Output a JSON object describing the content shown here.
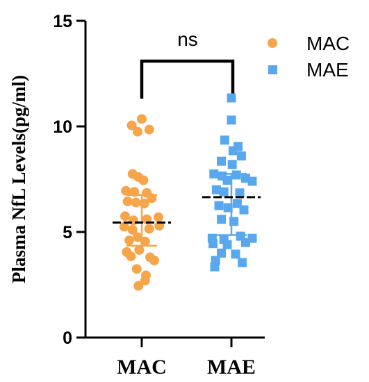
{
  "chart_data": {
    "type": "scatter",
    "ylabel": "Plasma NfL Levels(pg/ml)",
    "ylim": [
      0,
      15
    ],
    "yticks": [
      0,
      5,
      10,
      15
    ],
    "categories": [
      "MAC",
      "MAE"
    ],
    "legend_position": "top-right",
    "grid": false,
    "significance": {
      "label": "ns",
      "between": [
        "MAC",
        "MAE"
      ]
    },
    "series": [
      {
        "name": "MAC",
        "marker": "circle",
        "color": "#F7A54A",
        "mean": 5.45,
        "sd_low": 4.35,
        "sd_high": 6.75,
        "points": [
          {
            "dx": 0.0,
            "y": 10.35
          },
          {
            "dx": -0.6,
            "y": 10.05
          },
          {
            "dx": -0.25,
            "y": 9.75
          },
          {
            "dx": 0.45,
            "y": 9.85
          },
          {
            "dx": -0.55,
            "y": 7.75
          },
          {
            "dx": -0.2,
            "y": 7.6
          },
          {
            "dx": 0.1,
            "y": 7.45
          },
          {
            "dx": -0.95,
            "y": 6.95
          },
          {
            "dx": -0.45,
            "y": 6.9
          },
          {
            "dx": 0.3,
            "y": 6.85
          },
          {
            "dx": -0.85,
            "y": 6.45
          },
          {
            "dx": -0.35,
            "y": 6.4
          },
          {
            "dx": 0.15,
            "y": 6.35
          },
          {
            "dx": 0.6,
            "y": 6.6
          },
          {
            "dx": -1.0,
            "y": 5.75
          },
          {
            "dx": -0.5,
            "y": 5.55
          },
          {
            "dx": 0.3,
            "y": 5.6
          },
          {
            "dx": 1.0,
            "y": 5.7
          },
          {
            "dx": -1.05,
            "y": 5.25
          },
          {
            "dx": -0.55,
            "y": 5.1
          },
          {
            "dx": 0.45,
            "y": 5.15
          },
          {
            "dx": 1.05,
            "y": 5.3
          },
          {
            "dx": -0.75,
            "y": 4.6
          },
          {
            "dx": -0.25,
            "y": 4.75
          },
          {
            "dx": 0.2,
            "y": 4.55
          },
          {
            "dx": -0.9,
            "y": 4.05
          },
          {
            "dx": -0.15,
            "y": 4.15
          },
          {
            "dx": 0.5,
            "y": 3.8
          },
          {
            "dx": -0.65,
            "y": 3.85
          },
          {
            "dx": 0.75,
            "y": 3.65
          },
          {
            "dx": -0.3,
            "y": 3.25
          },
          {
            "dx": 0.25,
            "y": 2.95
          },
          {
            "dx": 0.2,
            "y": 2.7
          },
          {
            "dx": -0.2,
            "y": 2.45
          }
        ]
      },
      {
        "name": "MAE",
        "marker": "square",
        "color": "#59A8EE",
        "mean": 6.65,
        "sd_low": 4.85,
        "sd_high": 7.75,
        "points": [
          {
            "dx": 0.0,
            "y": 11.35
          },
          {
            "dx": 0.0,
            "y": 10.3
          },
          {
            "dx": -0.4,
            "y": 9.35
          },
          {
            "dx": 0.4,
            "y": 9.05
          },
          {
            "dx": 0.1,
            "y": 8.85
          },
          {
            "dx": 0.6,
            "y": 8.6
          },
          {
            "dx": -0.6,
            "y": 8.35
          },
          {
            "dx": 0.05,
            "y": 8.2
          },
          {
            "dx": -1.05,
            "y": 7.75
          },
          {
            "dx": -0.55,
            "y": 7.65
          },
          {
            "dx": 0.3,
            "y": 7.7
          },
          {
            "dx": 0.85,
            "y": 7.55
          },
          {
            "dx": -0.25,
            "y": 7.45
          },
          {
            "dx": 1.25,
            "y": 7.4
          },
          {
            "dx": -0.9,
            "y": 7.0
          },
          {
            "dx": -0.45,
            "y": 6.9
          },
          {
            "dx": 0.5,
            "y": 6.85
          },
          {
            "dx": -0.75,
            "y": 6.25
          },
          {
            "dx": 0.35,
            "y": 6.35
          },
          {
            "dx": -0.2,
            "y": 6.15
          },
          {
            "dx": 0.75,
            "y": 6.05
          },
          {
            "dx": -0.6,
            "y": 5.6
          },
          {
            "dx": 0.15,
            "y": 5.5
          },
          {
            "dx": -1.15,
            "y": 4.7
          },
          {
            "dx": -0.45,
            "y": 4.65
          },
          {
            "dx": 0.55,
            "y": 4.8
          },
          {
            "dx": 1.25,
            "y": 4.7
          },
          {
            "dx": -1.1,
            "y": 4.45
          },
          {
            "dx": -0.25,
            "y": 4.4
          },
          {
            "dx": 0.85,
            "y": 4.5
          },
          {
            "dx": -0.6,
            "y": 4.0
          },
          {
            "dx": 0.25,
            "y": 3.95
          },
          {
            "dx": -0.95,
            "y": 3.65
          },
          {
            "dx": 0.65,
            "y": 3.55
          },
          {
            "dx": -1.0,
            "y": 3.35
          }
        ]
      }
    ]
  }
}
